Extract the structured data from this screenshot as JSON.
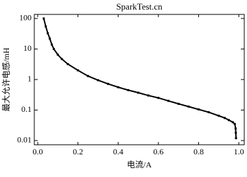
{
  "chart_data": {
    "type": "scatter",
    "title": "SparkTest.cn",
    "x_label": "电流/A",
    "y_label": "最大允许电感/mH",
    "x": [
      0.03,
      0.04,
      0.05,
      0.06,
      0.07,
      0.08,
      0.1,
      0.12,
      0.15,
      0.2,
      0.25,
      0.3,
      0.35,
      0.4,
      0.45,
      0.5,
      0.55,
      0.6,
      0.65,
      0.7,
      0.75,
      0.8,
      0.85,
      0.9,
      0.93,
      0.95,
      0.97,
      0.98,
      0.984,
      0.985,
      0.986
    ],
    "series": [
      {
        "color": "#000000",
        "values": [
          100,
          55,
          33,
          22,
          14,
          10,
          6.5,
          4.7,
          3.2,
          2,
          1.3,
          0.95,
          0.72,
          0.56,
          0.45,
          0.37,
          0.3,
          0.25,
          0.2,
          0.16,
          0.13,
          0.105,
          0.085,
          0.065,
          0.055,
          0.047,
          0.04,
          0.035,
          0.025,
          0.018,
          0.012
        ]
      }
    ],
    "xlim": [
      -0.017,
      1.027
    ],
    "ylim": [
      0.0073,
      136
    ],
    "y_log": true,
    "xticks": [
      {
        "value": 0,
        "label": "0.0"
      },
      0.2,
      0.4,
      0.6,
      0.8,
      {
        "value": 1,
        "label": "1.0"
      }
    ],
    "yticks": [
      0.01,
      0.1,
      1,
      10,
      100
    ]
  }
}
